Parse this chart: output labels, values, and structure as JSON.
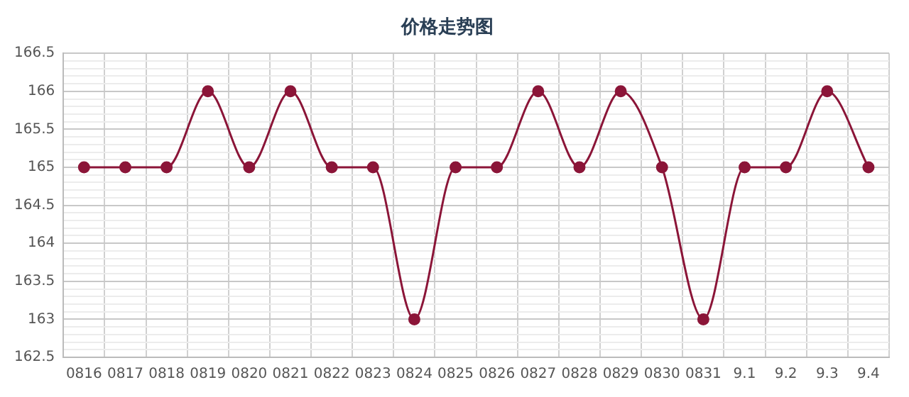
{
  "chart_data": {
    "type": "line",
    "title": "价格走势图",
    "categories": [
      "0816",
      "0817",
      "0818",
      "0819",
      "0820",
      "0821",
      "0822",
      "0823",
      "0824",
      "0825",
      "0826",
      "0827",
      "0828",
      "0829",
      "0830",
      "0831",
      "9.1",
      "9.2",
      "9.3",
      "9.4"
    ],
    "series": [
      {
        "color": "#8b1538",
        "values": [
          165,
          165,
          165,
          166,
          165,
          166,
          165,
          165,
          163,
          165,
          165,
          166,
          165,
          166,
          165,
          163,
          165,
          165,
          166,
          165
        ]
      }
    ],
    "ylim": [
      162.5,
      166.5
    ],
    "yticks": [
      162.5,
      {
        "value": 162.6,
        "label": null
      },
      {
        "value": 162.7,
        "label": null
      },
      {
        "value": 162.8,
        "label": null
      },
      {
        "value": 162.9,
        "label": null
      },
      163,
      {
        "value": 163.1,
        "label": null
      },
      {
        "value": 163.2,
        "label": null
      },
      {
        "value": 163.3,
        "label": null
      },
      {
        "value": 163.4,
        "label": null
      },
      163.5,
      {
        "value": 163.6,
        "label": null
      },
      {
        "value": 163.7,
        "label": null
      },
      {
        "value": 163.8,
        "label": null
      },
      {
        "value": 163.9,
        "label": null
      },
      164,
      {
        "value": 164.1,
        "label": null
      },
      {
        "value": 164.2,
        "label": null
      },
      {
        "value": 164.3,
        "label": null
      },
      {
        "value": 164.4,
        "label": null
      },
      164.5,
      {
        "value": 164.6,
        "label": null
      },
      {
        "value": 164.7,
        "label": null
      },
      {
        "value": 164.8,
        "label": null
      },
      {
        "value": 164.9,
        "label": null
      },
      165,
      {
        "value": 165.1,
        "label": null
      },
      {
        "value": 165.2,
        "label": null
      },
      {
        "value": 165.3,
        "label": null
      },
      {
        "value": 165.4,
        "label": null
      },
      165.5,
      {
        "value": 165.6,
        "label": null
      },
      {
        "value": 165.7,
        "label": null
      },
      {
        "value": 165.8,
        "label": null
      },
      {
        "value": 165.9,
        "label": null
      },
      166,
      {
        "value": 166.1,
        "label": null
      },
      {
        "value": 166.2,
        "label": null
      },
      {
        "value": 166.3,
        "label": null
      },
      {
        "value": 166.4,
        "label": null
      },
      166.5
    ],
    "grid": true,
    "legend": false,
    "marker": "circle",
    "line_style": "solid"
  }
}
